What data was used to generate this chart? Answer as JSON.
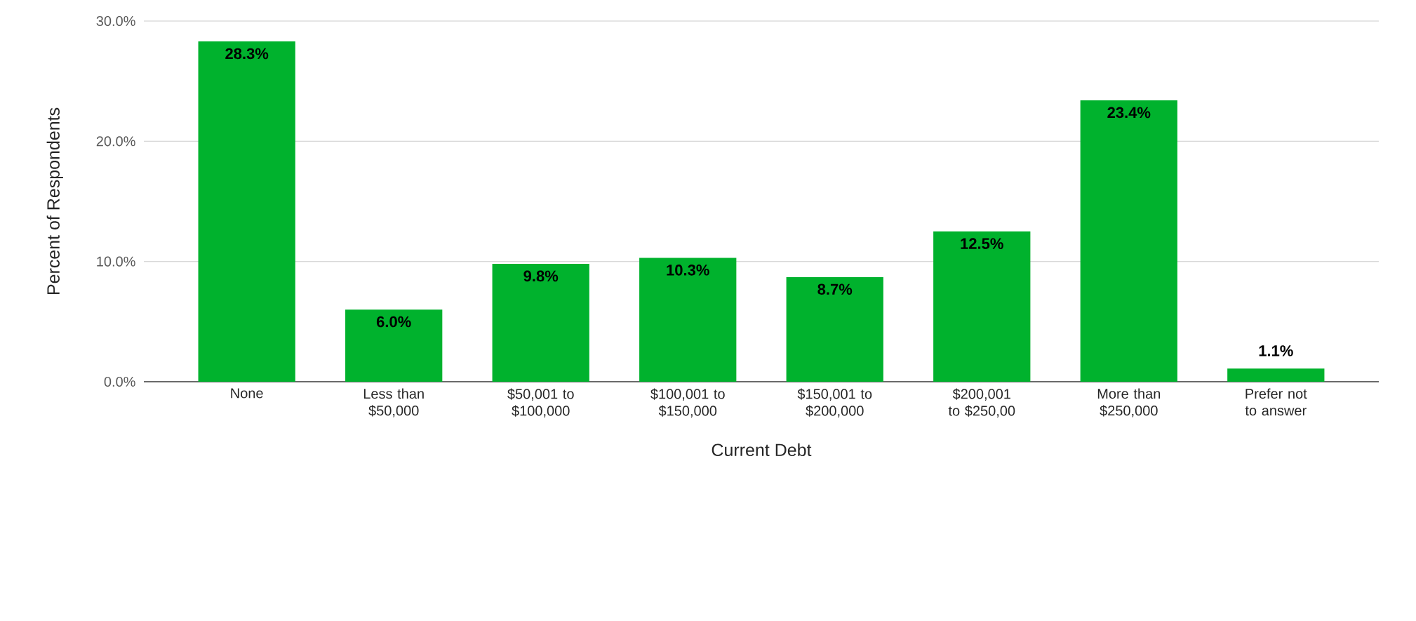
{
  "chart_data": {
    "type": "bar",
    "xlabel": "Current Debt",
    "ylabel": "Percent of Respondents",
    "categories": [
      "None",
      "Less than $50,000",
      "$50,001 to $100,000",
      "$100,001 to $150,000",
      "$150,001 to $200,000",
      "$200,001 to $250,00",
      "More than $250,000",
      "Prefer not to answer"
    ],
    "values": [
      28.3,
      6.0,
      9.8,
      10.3,
      8.7,
      12.5,
      23.4,
      1.1
    ],
    "value_labels": [
      "28.3%",
      "6.0%",
      "9.8%",
      "10.3%",
      "8.7%",
      "12.5%",
      "23.4%",
      "1.1%"
    ],
    "color": "#00b22d",
    "ylim": [
      0,
      30
    ],
    "yticks": [
      {
        "value": 0,
        "label": "0.0%"
      },
      {
        "value": 10,
        "label": "10.0%"
      },
      {
        "value": 20,
        "label": "20.0%"
      },
      {
        "value": 30,
        "label": "30.0%"
      }
    ],
    "grid": "y",
    "legend": false
  }
}
